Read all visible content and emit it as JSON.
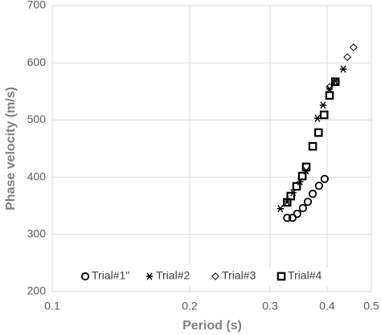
{
  "chart_data": {
    "type": "scatter",
    "x_label": "Period (s)",
    "y_label": "Phase velocity (m/s)",
    "xlim": [
      0.1,
      0.5
    ],
    "xticks": [
      0.1,
      0.2,
      0.3,
      0.4,
      0.5
    ],
    "xscale": "log",
    "ylim": [
      200,
      700
    ],
    "yticks": [
      200,
      300,
      400,
      500,
      600,
      700
    ],
    "grid": true,
    "legend": "bottom",
    "series": [
      {
        "name": "Trial#1\"",
        "color": "#000000",
        "marker": "circle",
        "x": [
          0.327,
          0.336,
          0.344,
          0.354,
          0.363,
          0.372,
          0.384,
          0.395
        ],
        "values": [
          329,
          329,
          336,
          346,
          357,
          371,
          385,
          397
        ]
      },
      {
        "name": "Trial#2",
        "color": "#000000",
        "marker": "asterisk",
        "x": [
          0.316,
          0.327,
          0.337,
          0.349,
          0.36,
          0.381,
          0.392,
          0.405,
          0.417,
          0.434
        ],
        "values": [
          345,
          357,
          373,
          392,
          411,
          503,
          526,
          554,
          568,
          589
        ]
      },
      {
        "name": "Trial#3",
        "color": "#000000",
        "marker": "diamond",
        "x": [
          0.405,
          0.418,
          0.443,
          0.457
        ],
        "values": [
          558,
          567,
          610,
          627
        ]
      },
      {
        "name": "Trial#4",
        "color": "#000000",
        "marker": "square",
        "x": [
          0.327,
          0.333,
          0.343,
          0.353,
          0.36,
          0.372,
          0.383,
          0.394,
          0.405,
          0.417
        ],
        "values": [
          356,
          367,
          384,
          402,
          418,
          454,
          478,
          509,
          543,
          567
        ]
      }
    ]
  }
}
